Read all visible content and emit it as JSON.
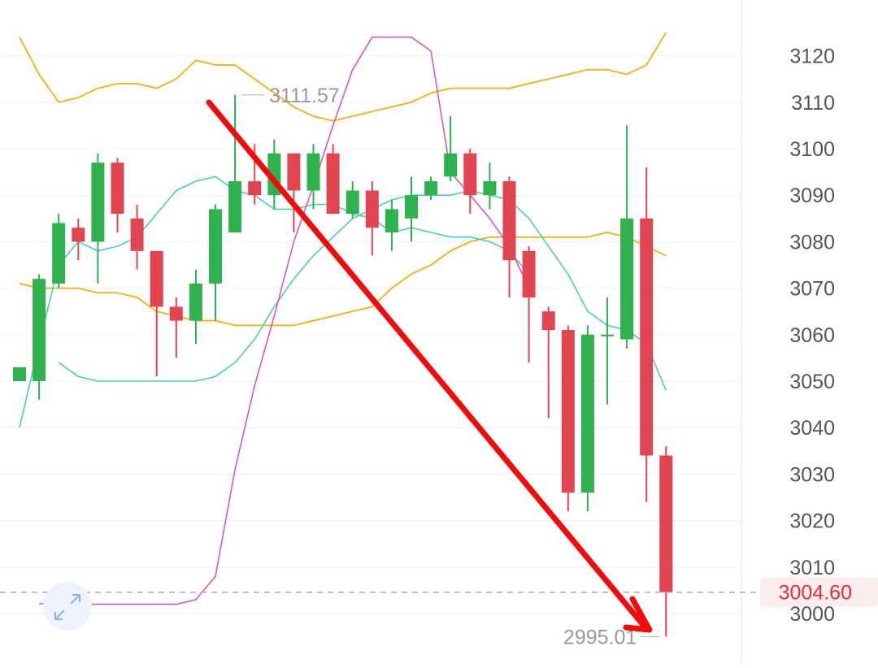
{
  "chart_data": {
    "type": "candlestick",
    "colors": {
      "up": "#2fb14f",
      "down": "#e24552",
      "boll_band": "#efb728",
      "ma_short": "#4ccfb0",
      "ma_long": "#d958b8",
      "arrow": "#f20b0b",
      "price_line": "#a8a8a8",
      "price_tag_bg": "#fdecee",
      "price_tag_text": "#e0303f",
      "grid": "#efefef"
    },
    "y_axis": {
      "range": [
        2992,
        3133
      ],
      "ticks": [
        "3120",
        "3110",
        "3100",
        "3090",
        "3080",
        "3070",
        "3060",
        "3050",
        "3040",
        "3030",
        "3020",
        "3010",
        "3000"
      ],
      "position": "right"
    },
    "candles": [
      {
        "open": 3050,
        "close": 3053,
        "high": 3053,
        "low": 3050
      },
      {
        "open": 3050,
        "close": 3072,
        "high": 3073,
        "low": 3046
      },
      {
        "open": 3071,
        "close": 3084,
        "high": 3086,
        "low": 3070
      },
      {
        "open": 3083,
        "close": 3080,
        "high": 3085,
        "low": 3076
      },
      {
        "open": 3080,
        "close": 3097,
        "high": 3099,
        "low": 3071
      },
      {
        "open": 3097,
        "close": 3086,
        "high": 3098,
        "low": 3082
      },
      {
        "open": 3085,
        "close": 3078,
        "high": 3088,
        "low": 3074
      },
      {
        "open": 3078,
        "close": 3066,
        "high": 3078,
        "low": 3051
      },
      {
        "open": 3066,
        "close": 3063,
        "high": 3068,
        "low": 3055
      },
      {
        "open": 3063,
        "close": 3071,
        "high": 3074,
        "low": 3058
      },
      {
        "open": 3071,
        "close": 3087,
        "high": 3088,
        "low": 3063
      },
      {
        "open": 3082,
        "close": 3093,
        "high": 3111.57,
        "low": 3082
      },
      {
        "open": 3093,
        "close": 3090,
        "high": 3101,
        "low": 3088
      },
      {
        "open": 3090,
        "close": 3099,
        "high": 3102,
        "low": 3087
      },
      {
        "open": 3099,
        "close": 3091,
        "high": 3099,
        "low": 3082
      },
      {
        "open": 3091,
        "close": 3099,
        "high": 3101,
        "low": 3087
      },
      {
        "open": 3099,
        "close": 3086,
        "high": 3101,
        "low": 3086
      },
      {
        "open": 3086,
        "close": 3091,
        "high": 3093,
        "low": 3085
      },
      {
        "open": 3091,
        "close": 3083,
        "high": 3093,
        "low": 3077
      },
      {
        "open": 3082,
        "close": 3087,
        "high": 3089,
        "low": 3078
      },
      {
        "open": 3085,
        "close": 3090,
        "high": 3094,
        "low": 3080
      },
      {
        "open": 3090,
        "close": 3093,
        "high": 3094,
        "low": 3089
      },
      {
        "open": 3094,
        "close": 3099,
        "high": 3107,
        "low": 3093
      },
      {
        "open": 3099,
        "close": 3090,
        "high": 3100,
        "low": 3086
      },
      {
        "open": 3090,
        "close": 3093,
        "high": 3097,
        "low": 3087
      },
      {
        "open": 3093,
        "close": 3076,
        "high": 3094,
        "low": 3068
      },
      {
        "open": 3078,
        "close": 3068,
        "high": 3079,
        "low": 3054
      },
      {
        "open": 3065,
        "close": 3061,
        "high": 3066,
        "low": 3042
      },
      {
        "open": 3061,
        "close": 3026,
        "high": 3062,
        "low": 3022
      },
      {
        "open": 3026,
        "close": 3060,
        "high": 3062,
        "low": 3022
      },
      {
        "open": 3060,
        "close": 3060,
        "high": 3068,
        "low": 3045
      },
      {
        "open": 3059,
        "close": 3085,
        "high": 3105,
        "low": 3057
      },
      {
        "open": 3085,
        "close": 3034,
        "high": 3096,
        "low": 3024
      },
      {
        "open": 3034,
        "close": 3004.6,
        "high": 3036,
        "low": 2995.01
      }
    ],
    "boll_upper": [
      3124,
      3116,
      3110,
      3111,
      3113,
      3114,
      3114,
      3113,
      3115,
      3119,
      3118,
      3118,
      3115,
      3112,
      3109,
      3107,
      3106,
      3107,
      3108,
      3109,
      3110,
      3112,
      3113,
      3113,
      3113,
      3113,
      3114,
      3115,
      3116,
      3117,
      3117,
      3116,
      3118,
      3125
    ],
    "boll_mid": [
      3071,
      3070,
      3070,
      3070,
      3069,
      3069,
      3068,
      3065,
      3064,
      3063,
      3063,
      3062,
      3062,
      3062,
      3062,
      3063,
      3064,
      3065,
      3066,
      3070,
      3073,
      3075,
      3078,
      3080,
      3081,
      3081,
      3081,
      3081,
      3081,
      3081,
      3082,
      3081,
      3079,
      3077
    ],
    "ma_short": [
      3054,
      3051,
      3050,
      3050,
      3050,
      3050,
      3050,
      3050,
      3051,
      3054,
      3059,
      3066,
      3072,
      3077,
      3081,
      3085,
      3087,
      3089,
      3090,
      3090,
      3090,
      3091,
      3090,
      3089,
      3085,
      3079,
      3073,
      3065,
      3062,
      3061,
      3058,
      3048
    ],
    "ma_short_x0": 2,
    "ma_fast": [
      3040,
      3058,
      3075,
      3080,
      3078,
      3079,
      3081,
      3086,
      3091,
      3093,
      3094,
      3091,
      3090,
      3087,
      3087,
      3088,
      3088,
      3086,
      3085,
      3082,
      3083,
      3082,
      3081,
      3081,
      3080,
      3078,
      3073
    ],
    "ma_fast_x0": 0,
    "ma_long": [
      3002,
      3003,
      3002,
      3002,
      3002,
      3002,
      3002,
      3002,
      3003,
      3008,
      3031,
      3049,
      3064,
      3080,
      3092,
      3105,
      3117,
      3124,
      3124,
      3124,
      3121,
      3095,
      3090,
      3085,
      3079,
      3070
    ],
    "ma_long_x0": 1,
    "annotations": {
      "high_label": "3111.57",
      "low_label": "2995.01",
      "last_price": "3004.60"
    }
  }
}
